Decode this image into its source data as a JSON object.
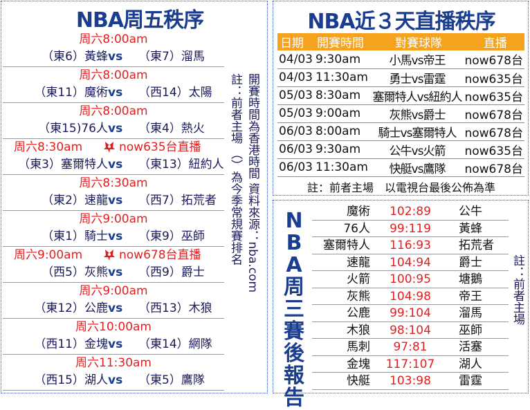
{
  "left": {
    "title": "NBA周五秩序",
    "games": [
      {
        "time": "周六8:00am",
        "home": "（東6）黃蜂",
        "vs": "vs",
        "away": "（東7）溜馬"
      },
      {
        "time": "周六8:00am",
        "home": "（東11）魔術",
        "vs": "vs",
        "away": "（西14）太陽"
      },
      {
        "time": "周六8:00am",
        "home": "（東15)76人",
        "vs": "vs",
        "away": "（東4）熱火"
      },
      {
        "time": "周六8:30am",
        "tv": "now635台直播",
        "home": "（東3）塞爾特人",
        "vs": "vs",
        "away": "（東13）紐約人"
      },
      {
        "time": "周六8:30am",
        "home": "（東2）速龍",
        "vs": "vs",
        "away": "（西7）拓荒者"
      },
      {
        "time": "周六9:00am",
        "home": "（東1）騎士",
        "vs": "vs",
        "away": "（東9）巫師"
      },
      {
        "time": "周六9:00am",
        "tv": "now678台直播",
        "home": "（西5）灰熊",
        "vs": "vs",
        "away": "（西9）爵士"
      },
      {
        "time": "周六9:00am",
        "home": "（東12）公鹿",
        "vs": "vs",
        "away": "（西13）木狼"
      },
      {
        "time": "周六10:00am",
        "home": "（西11）金塊",
        "vs": "vs",
        "away": "（東14）網隊"
      },
      {
        "time": "周六11:30am",
        "home": "（西15）湖人",
        "vs": "vs",
        "away": "（東5）鷹隊"
      }
    ],
    "note1": "註：前者主場 （）為今季常規賽排名",
    "note2": "開賽時間為香港時間 資料來源：nba.com"
  },
  "schedule": {
    "title": "NBA近３天直播秩序",
    "headers": [
      "日期",
      "開賽時間",
      "對賽球隊",
      "直播"
    ],
    "rows": [
      [
        "04/03",
        "9:30am",
        "小馬vs帝王",
        "now678台"
      ],
      [
        "04/03",
        "11:30am",
        "勇士vs雷霆",
        "now635台"
      ],
      [
        "05/03",
        "8:30am",
        "塞爾特人vs紐約人",
        "now635台"
      ],
      [
        "05/03",
        "9:00am",
        "灰熊vs爵士",
        "now678台"
      ],
      [
        "06/03",
        "8:00am",
        "騎士vs塞爾特人",
        "now678台"
      ],
      [
        "06/03",
        "9:30am",
        "公牛vs火箭",
        "now635台"
      ],
      [
        "06/03",
        "11:30am",
        "快艇vs鷹隊",
        "now678台"
      ]
    ],
    "note": "註：前者主場　以電視台最後公佈為準"
  },
  "results": {
    "title": "NBA周三賽後報告",
    "rows": [
      [
        "魔術",
        "102:89",
        "公牛"
      ],
      [
        "76人",
        "99:119",
        "黃蜂"
      ],
      [
        "塞爾特人",
        "116:93",
        "拓荒者"
      ],
      [
        "速龍",
        "104:94",
        "爵士"
      ],
      [
        "火箭",
        "100:95",
        "塘鵝"
      ],
      [
        "灰熊",
        "104:98",
        "帝王"
      ],
      [
        "公鹿",
        "99:104",
        "溜馬"
      ],
      [
        "木狼",
        "98:104",
        "巫師"
      ],
      [
        "馬刺",
        "97:81",
        "活塞"
      ],
      [
        "金塊",
        "117:107",
        "湖人"
      ],
      [
        "快艇",
        "103:98",
        "雷霆"
      ]
    ],
    "note": "註：前者主場"
  },
  "colors": {
    "title": "#1a3d8f",
    "time": "#e02020",
    "header": "#f5a21e"
  }
}
